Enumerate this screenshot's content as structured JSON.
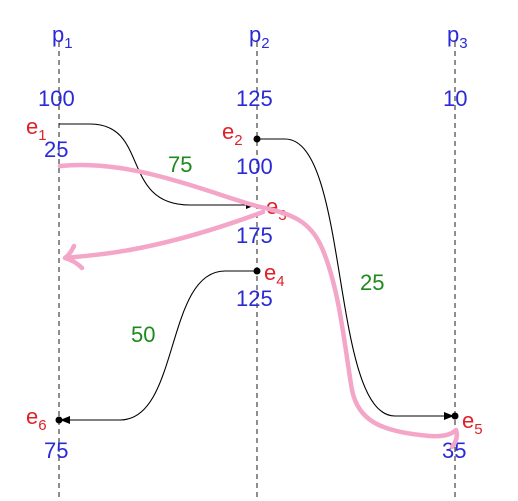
{
  "colors": {
    "process_label": "#2a2ad8",
    "value_label": "#2a2ad8",
    "event_label": "#e0202a",
    "weight_label": "#1e8a1e",
    "annotation_stroke": "#f4a6c8"
  },
  "processes": [
    {
      "letter": "p",
      "index": "1"
    },
    {
      "letter": "p",
      "index": "2"
    },
    {
      "letter": "p",
      "index": "3"
    }
  ],
  "initial_values": [
    "100",
    "125",
    "10"
  ],
  "events": [
    {
      "letter": "e",
      "index": "1",
      "before": "100",
      "after": "25"
    },
    {
      "letter": "e",
      "index": "2",
      "before": "125",
      "after": "100"
    },
    {
      "letter": "e",
      "index": "3",
      "after": "175"
    },
    {
      "letter": "e",
      "index": "4",
      "after": "125"
    },
    {
      "letter": "e",
      "index": "5",
      "after": "35"
    },
    {
      "letter": "e",
      "index": "6",
      "after": "75"
    }
  ],
  "messages": [
    {
      "from": "e1",
      "to": "e3",
      "weight": "75"
    },
    {
      "from": "e2",
      "to": "e5",
      "weight": "25"
    },
    {
      "from": "e4",
      "to": "e6",
      "weight": "50"
    }
  ]
}
